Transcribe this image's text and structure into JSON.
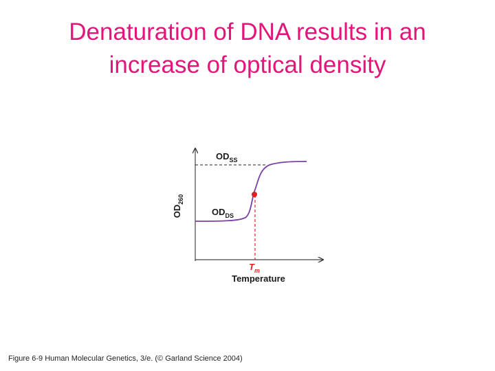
{
  "title": {
    "lines": [
      "Denaturation of DNA results in an",
      "increase of optical density"
    ]
  },
  "diagram": {
    "y_axis_label": {
      "main": "OD",
      "sub": "260"
    },
    "upper_label": {
      "main": "OD",
      "sub": "SS"
    },
    "lower_label": {
      "main": "OD",
      "sub": "DS"
    },
    "midpoint_label": {
      "main": "T",
      "sub": "m"
    },
    "x_axis_label": "Temperature"
  },
  "caption": "Figure 6-9  Human Molecular Genetics, 3/e. (© Garland Science 2004)"
}
